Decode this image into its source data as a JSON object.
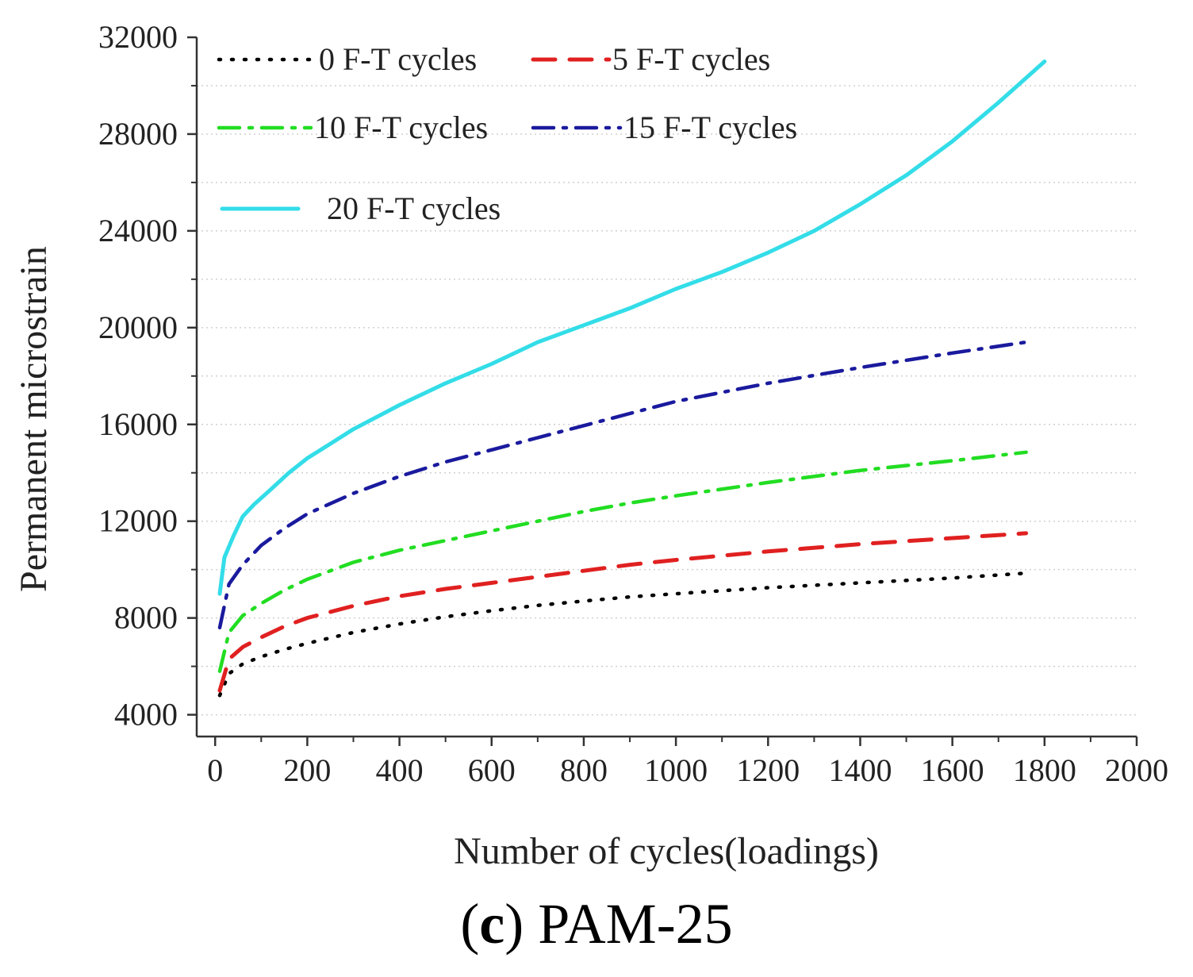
{
  "chart_data": {
    "type": "line",
    "title": "",
    "caption": {
      "label_open": "(",
      "label_letter": "c",
      "label_close": ")",
      "text": "PAM-25"
    },
    "xlabel": "Number of cycles(loadings)",
    "ylabel": "Permanent microstrain",
    "xlim": [
      -40,
      2000
    ],
    "ylim": [
      3100,
      32000
    ],
    "xticks": [
      0,
      200,
      400,
      600,
      800,
      1000,
      1200,
      1400,
      1600,
      1800,
      2000
    ],
    "yticks": [
      4000,
      8000,
      12000,
      16000,
      20000,
      24000,
      28000,
      32000
    ],
    "grid": "horizontal-dotted",
    "legend_position": "top-left",
    "series": [
      {
        "name": "0 F-T cycles",
        "color": "#000000",
        "dash": "dotted",
        "x": [
          10,
          30,
          60,
          100,
          150,
          200,
          300,
          400,
          500,
          600,
          700,
          800,
          900,
          1000,
          1200,
          1400,
          1600,
          1760
        ],
        "y": [
          4800,
          5700,
          6100,
          6400,
          6700,
          6950,
          7400,
          7750,
          8050,
          8300,
          8520,
          8700,
          8870,
          9000,
          9250,
          9450,
          9650,
          9850
        ]
      },
      {
        "name": "5 F-T cycles",
        "color": "#e02020",
        "dash": "dashed",
        "x": [
          10,
          30,
          60,
          100,
          150,
          200,
          300,
          400,
          500,
          600,
          700,
          800,
          900,
          1000,
          1200,
          1400,
          1600,
          1760
        ],
        "y": [
          5000,
          6300,
          6800,
          7200,
          7650,
          8000,
          8500,
          8900,
          9200,
          9450,
          9700,
          9950,
          10200,
          10400,
          10750,
          11050,
          11300,
          11500
        ]
      },
      {
        "name": "10 F-T cycles",
        "color": "#22dd22",
        "dash": "dashdot",
        "x": [
          10,
          30,
          60,
          100,
          150,
          200,
          300,
          400,
          500,
          600,
          700,
          800,
          900,
          1000,
          1200,
          1400,
          1600,
          1760
        ],
        "y": [
          5800,
          7400,
          8100,
          8600,
          9150,
          9600,
          10300,
          10800,
          11200,
          11600,
          12000,
          12400,
          12750,
          13050,
          13600,
          14100,
          14500,
          14850
        ]
      },
      {
        "name": "15 F-T cycles",
        "color": "#1a1a9e",
        "dash": "dashdot",
        "x": [
          10,
          30,
          60,
          100,
          150,
          200,
          300,
          400,
          500,
          600,
          700,
          800,
          900,
          1000,
          1200,
          1400,
          1600,
          1760
        ],
        "y": [
          7600,
          9400,
          10200,
          11000,
          11700,
          12300,
          13150,
          13850,
          14450,
          14950,
          15450,
          15950,
          16450,
          16950,
          17700,
          18350,
          18950,
          19400
        ]
      },
      {
        "name": "20 F-T cycles",
        "color": "#33dde8",
        "dash": "solid",
        "x": [
          10,
          20,
          40,
          60,
          85,
          120,
          160,
          200,
          250,
          300,
          400,
          500,
          600,
          700,
          800,
          900,
          1000,
          1100,
          1200,
          1300,
          1400,
          1500,
          1600,
          1700,
          1800
        ],
        "y": [
          9000,
          10500,
          11400,
          12200,
          12700,
          13300,
          14000,
          14600,
          15200,
          15800,
          16800,
          17700,
          18500,
          19400,
          20100,
          20800,
          21600,
          22300,
          23100,
          24000,
          25100,
          26300,
          27700,
          29300,
          31000
        ]
      }
    ]
  }
}
